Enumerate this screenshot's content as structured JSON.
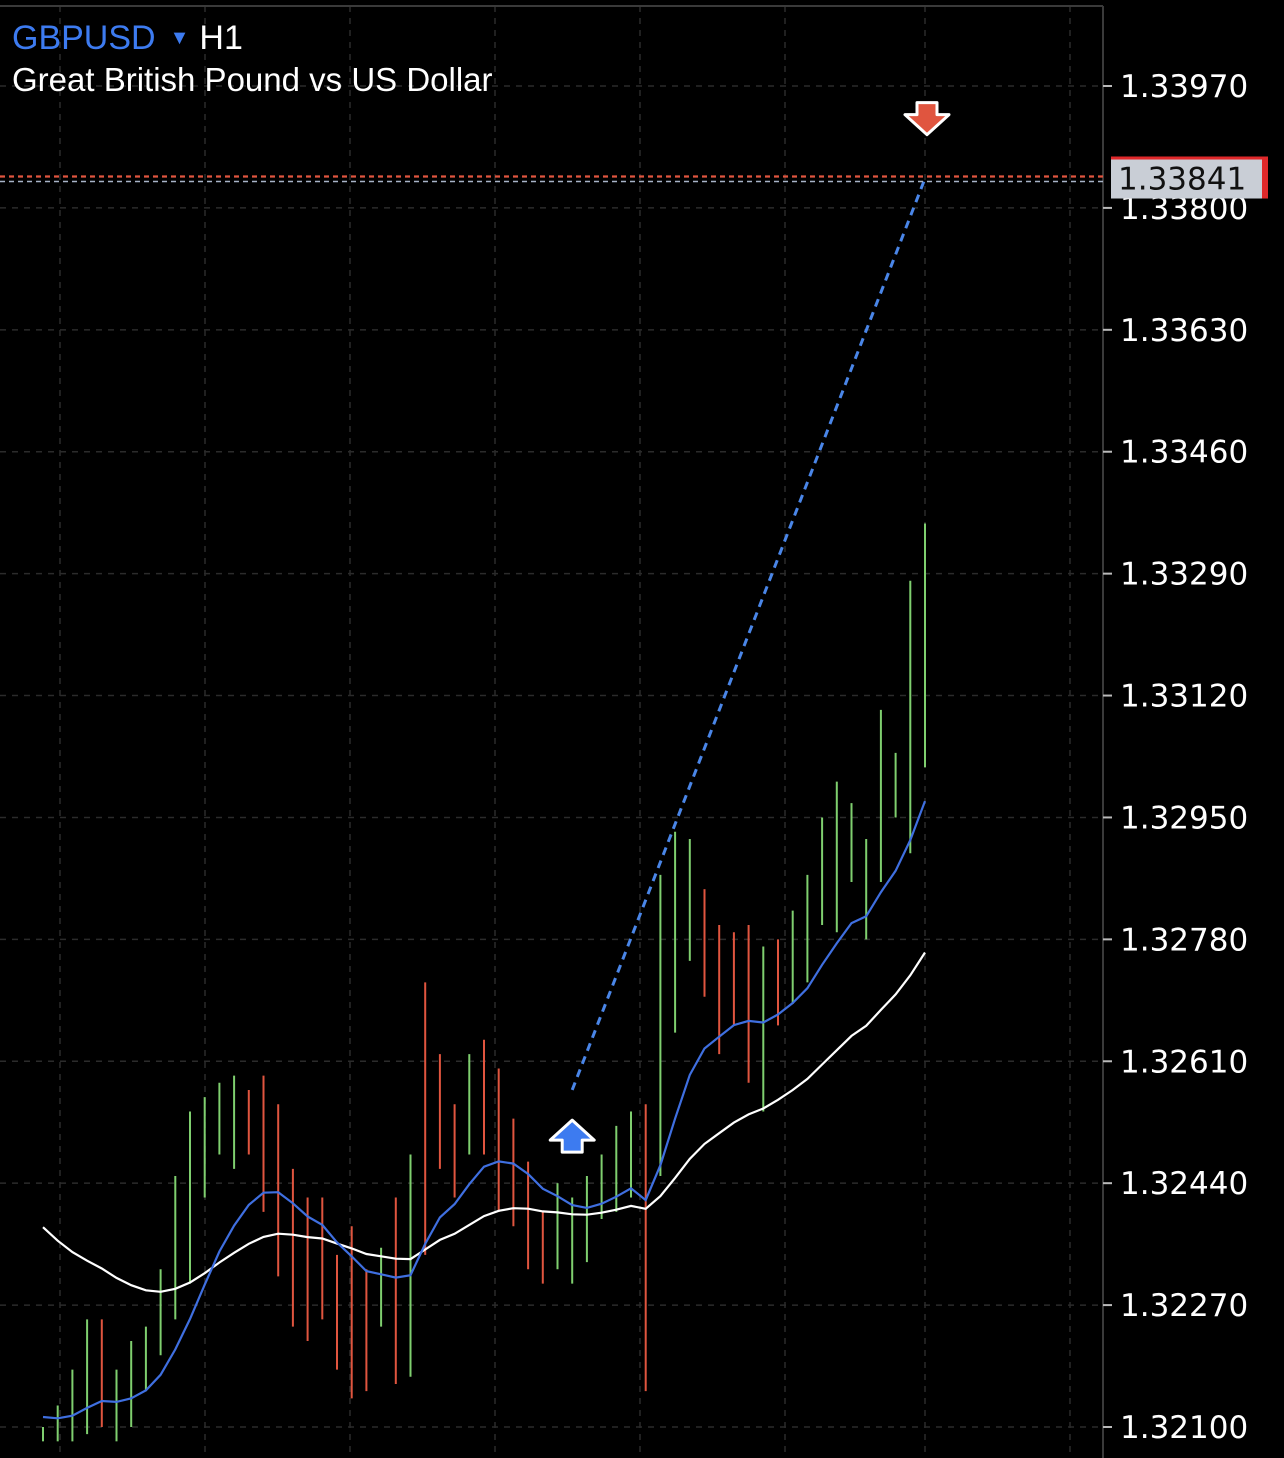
{
  "header": {
    "symbol": "GBPUSD",
    "dropdown_icon": "caret-down-icon",
    "timeframe": "H1",
    "description": "Great British Pound vs US Dollar"
  },
  "colors": {
    "background": "#000000",
    "grid": "#2b2b2b",
    "bull_bar": "#7fcf6f",
    "bear_bar": "#e0553f",
    "fast_ma": "#3f6fe0",
    "slow_ma": "#ffffff",
    "trend_line": "#4a86e8",
    "price_line": "#e0553f",
    "buy_arrow": "#3d7bf0",
    "sell_arrow": "#e0553f",
    "price_tag_bg": "#c9ced6",
    "price_tag_border": "#e0282a"
  },
  "current_price": {
    "label": "1.33841",
    "value": 1.33841
  },
  "chart_data": {
    "type": "ohlc",
    "instrument": "GBPUSD",
    "timeframe": "H1",
    "y_ticks": [
      "1.33970",
      "1.33800",
      "1.33630",
      "1.33460",
      "1.33290",
      "1.33120",
      "1.32950",
      "1.32780",
      "1.32610",
      "1.32440",
      "1.32270",
      "1.32100"
    ],
    "y_tick_values": [
      1.3397,
      1.338,
      1.3363,
      1.3346,
      1.3329,
      1.3312,
      1.3295,
      1.3278,
      1.3261,
      1.3244,
      1.3227,
      1.321
    ],
    "ylim": [
      1.3208,
      1.3406
    ],
    "bar_count": 61,
    "bars": [
      {
        "high": 1.321,
        "low": 1.3208,
        "bull": true
      },
      {
        "high": 1.3213,
        "low": 1.3208,
        "bull": true
      },
      {
        "high": 1.3218,
        "low": 1.3208,
        "bull": true
      },
      {
        "high": 1.3225,
        "low": 1.3209,
        "bull": true
      },
      {
        "high": 1.3225,
        "low": 1.321,
        "bull": false
      },
      {
        "high": 1.3218,
        "low": 1.3208,
        "bull": true
      },
      {
        "high": 1.3222,
        "low": 1.321,
        "bull": true
      },
      {
        "high": 1.3224,
        "low": 1.3215,
        "bull": true
      },
      {
        "high": 1.3232,
        "low": 1.322,
        "bull": true
      },
      {
        "high": 1.3245,
        "low": 1.3225,
        "bull": true
      },
      {
        "high": 1.3254,
        "low": 1.323,
        "bull": true
      },
      {
        "high": 1.3256,
        "low": 1.3242,
        "bull": true
      },
      {
        "high": 1.3258,
        "low": 1.3248,
        "bull": true
      },
      {
        "high": 1.3259,
        "low": 1.3246,
        "bull": true
      },
      {
        "high": 1.3257,
        "low": 1.3248,
        "bull": false
      },
      {
        "high": 1.3259,
        "low": 1.324,
        "bull": false
      },
      {
        "high": 1.3255,
        "low": 1.3231,
        "bull": false
      },
      {
        "high": 1.3246,
        "low": 1.3224,
        "bull": false
      },
      {
        "high": 1.3242,
        "low": 1.3222,
        "bull": false
      },
      {
        "high": 1.3242,
        "low": 1.3225,
        "bull": false
      },
      {
        "high": 1.3234,
        "low": 1.3218,
        "bull": false
      },
      {
        "high": 1.3238,
        "low": 1.3214,
        "bull": false
      },
      {
        "high": 1.3232,
        "low": 1.3215,
        "bull": false
      },
      {
        "high": 1.3235,
        "low": 1.3224,
        "bull": true
      },
      {
        "high": 1.3242,
        "low": 1.3216,
        "bull": false
      },
      {
        "high": 1.3248,
        "low": 1.3217,
        "bull": true
      },
      {
        "high": 1.3272,
        "low": 1.3234,
        "bull": false
      },
      {
        "high": 1.3262,
        "low": 1.3246,
        "bull": false
      },
      {
        "high": 1.3255,
        "low": 1.3242,
        "bull": false
      },
      {
        "high": 1.3262,
        "low": 1.3248,
        "bull": true
      },
      {
        "high": 1.3264,
        "low": 1.3248,
        "bull": false
      },
      {
        "high": 1.326,
        "low": 1.324,
        "bull": false
      },
      {
        "high": 1.3253,
        "low": 1.3238,
        "bull": false
      },
      {
        "high": 1.3247,
        "low": 1.3232,
        "bull": false
      },
      {
        "high": 1.324,
        "low": 1.323,
        "bull": false
      },
      {
        "high": 1.3244,
        "low": 1.3232,
        "bull": true
      },
      {
        "high": 1.3242,
        "low": 1.323,
        "bull": true
      },
      {
        "high": 1.3245,
        "low": 1.3233,
        "bull": true
      },
      {
        "high": 1.3248,
        "low": 1.3239,
        "bull": true
      },
      {
        "high": 1.3252,
        "low": 1.324,
        "bull": true
      },
      {
        "high": 1.3254,
        "low": 1.3242,
        "bull": true
      },
      {
        "high": 1.3255,
        "low": 1.3215,
        "bull": false
      },
      {
        "high": 1.3287,
        "low": 1.3245,
        "bull": true
      },
      {
        "high": 1.3293,
        "low": 1.3265,
        "bull": true
      },
      {
        "high": 1.3292,
        "low": 1.3275,
        "bull": true
      },
      {
        "high": 1.3285,
        "low": 1.327,
        "bull": false
      },
      {
        "high": 1.328,
        "low": 1.3262,
        "bull": false
      },
      {
        "high": 1.3279,
        "low": 1.3266,
        "bull": false
      },
      {
        "high": 1.328,
        "low": 1.3258,
        "bull": false
      },
      {
        "high": 1.3277,
        "low": 1.3254,
        "bull": true
      },
      {
        "high": 1.3278,
        "low": 1.3266,
        "bull": false
      },
      {
        "high": 1.3282,
        "low": 1.3269,
        "bull": true
      },
      {
        "high": 1.3287,
        "low": 1.3272,
        "bull": true
      },
      {
        "high": 1.3295,
        "low": 1.328,
        "bull": true
      },
      {
        "high": 1.33,
        "low": 1.3279,
        "bull": true
      },
      {
        "high": 1.3297,
        "low": 1.3286,
        "bull": true
      },
      {
        "high": 1.3292,
        "low": 1.3278,
        "bull": true
      },
      {
        "high": 1.331,
        "low": 1.3286,
        "bull": true
      },
      {
        "high": 1.3304,
        "low": 1.3295,
        "bull": true
      },
      {
        "high": 1.3328,
        "low": 1.329,
        "bull": true
      },
      {
        "high": 1.3336,
        "low": 1.3302,
        "bull": true
      }
    ],
    "trend_line": {
      "from_bar": 36,
      "from_price": 1.3257,
      "to_bar": 60,
      "to_price": 1.33841
    },
    "markers": [
      {
        "type": "buy",
        "name": "buy-arrow-icon"
      },
      {
        "type": "sell",
        "name": "sell-arrow-icon"
      }
    ]
  }
}
